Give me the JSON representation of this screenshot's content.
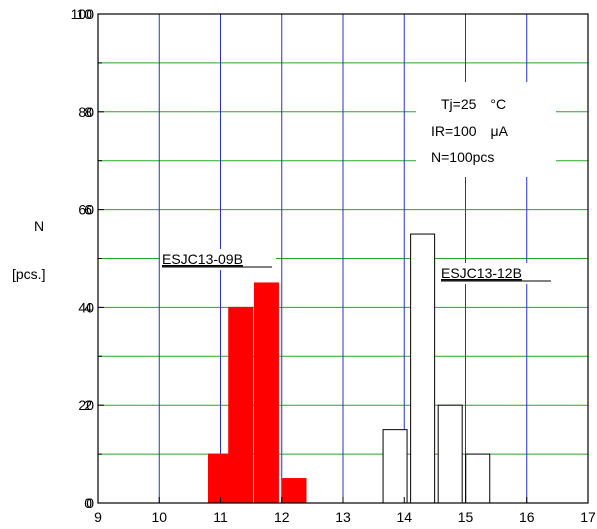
{
  "chart_data": {
    "type": "bar",
    "ylabel": "N",
    "ylabel_unit": "[pcs.]",
    "xlim": [
      9,
      17
    ],
    "ylim": [
      0,
      100
    ],
    "x_ticks": [
      "9",
      "10",
      "11",
      "12",
      "13",
      "14",
      "15",
      "16",
      "17"
    ],
    "y_ticks": [
      "0",
      "20",
      "40",
      "60",
      "80",
      "100"
    ],
    "y_tick_ghosts": [
      "0",
      "2",
      "4",
      "6",
      "8",
      "10"
    ],
    "grid": {
      "vertical_color": "#2233cc",
      "horizontal_color": "#22aa22",
      "horizontal_step": 10
    },
    "series": [
      {
        "name": "ESJC13-09B",
        "color": "#ff0000",
        "fill": "#ff0000",
        "bars": [
          {
            "x": 11.0,
            "value": 10
          },
          {
            "x": 11.33,
            "value": 40
          },
          {
            "x": 11.75,
            "value": 45
          },
          {
            "x": 12.2,
            "value": 5
          }
        ]
      },
      {
        "name": "ESJC13-12B",
        "color": "#000000",
        "fill": "#ffffff",
        "bars": [
          {
            "x": 13.85,
            "value": 15
          },
          {
            "x": 14.3,
            "value": 55
          },
          {
            "x": 14.75,
            "value": 20
          },
          {
            "x": 15.2,
            "value": 10
          }
        ]
      }
    ],
    "annotation": [
      "Tj=25　°C",
      "IR=100　μA",
      "N=100pcs"
    ]
  }
}
